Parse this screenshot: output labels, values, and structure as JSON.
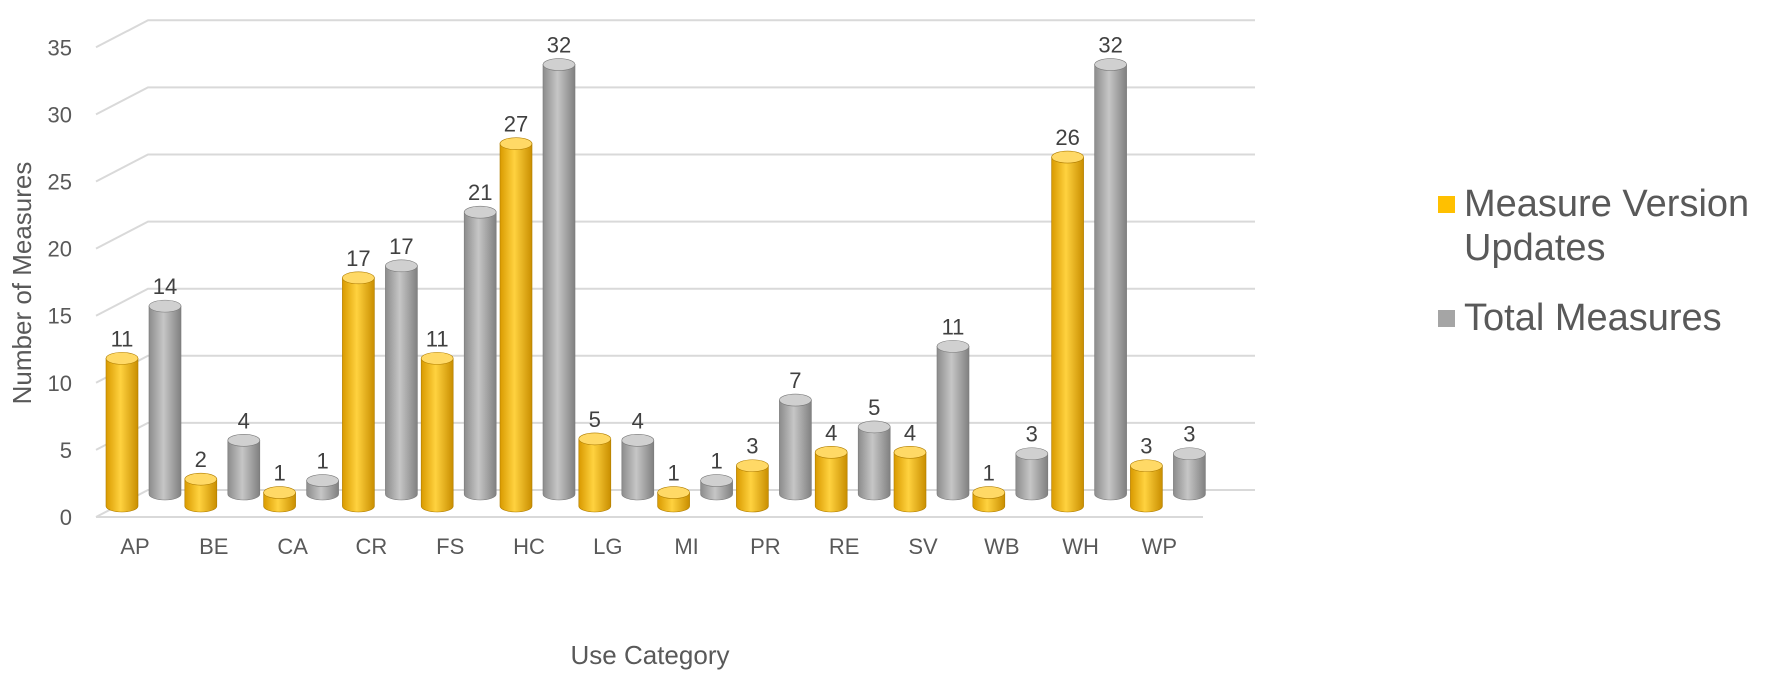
{
  "chart_data": {
    "type": "bar",
    "title": "",
    "xlabel": "Use Category",
    "ylabel": "Number of Measures",
    "categories": [
      "AP",
      "BE",
      "CA",
      "CR",
      "FS",
      "HC",
      "LG",
      "MI",
      "PR",
      "RE",
      "SV",
      "WB",
      "WH",
      "WP"
    ],
    "series": [
      {
        "name": "Measure Version Updates",
        "values": [
          11,
          2,
          1,
          17,
          11,
          27,
          5,
          1,
          3,
          4,
          4,
          1,
          26,
          3
        ],
        "color": "#FFC000"
      },
      {
        "name": "Total Measures",
        "values": [
          14,
          4,
          1,
          17,
          21,
          32,
          4,
          1,
          7,
          5,
          11,
          3,
          32,
          3
        ],
        "color": "#A5A5A5"
      }
    ],
    "ylim": [
      0,
      35
    ],
    "yticks": [
      0,
      5,
      10,
      15,
      20,
      25,
      30,
      35
    ],
    "grid": true,
    "legend": "right",
    "style": "3d-cylinder"
  }
}
